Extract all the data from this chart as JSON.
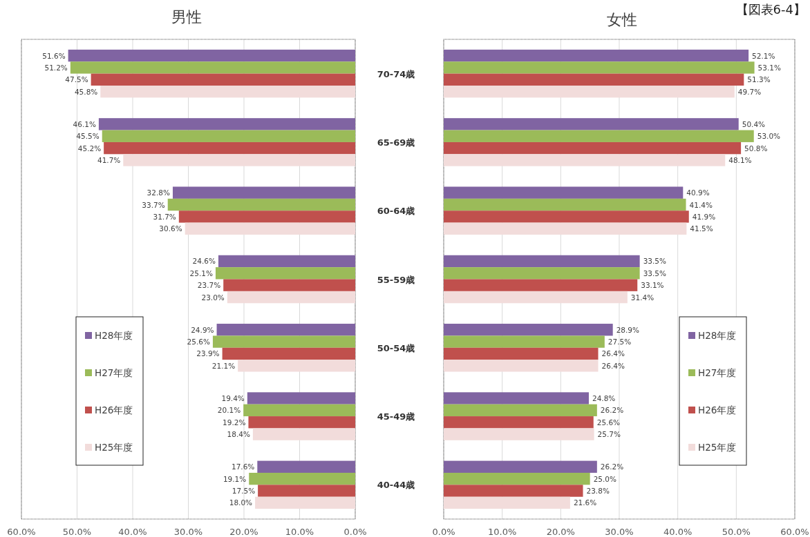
{
  "chart_data": [
    {
      "type": "bar",
      "orientation": "horizontal",
      "title": "男性",
      "annotations": [
        "【図表6-4】"
      ],
      "categories": [
        null,
        null,
        null,
        null,
        null,
        null,
        null
      ],
      "series": [
        {
          "name": "H28年度",
          "color": "#8064a2",
          "values": [
            51.6,
            46.1,
            32.8,
            24.6,
            24.9,
            19.4,
            17.6
          ],
          "value_labels": [
            "51.6%",
            "46.1%",
            "32.8%",
            "24.6%",
            "24.9%",
            "19.4%",
            "17.6%"
          ]
        },
        {
          "name": "H27年度",
          "color": "#9bbb59",
          "values": [
            51.2,
            45.5,
            33.7,
            25.1,
            25.6,
            20.1,
            19.1
          ],
          "value_labels": [
            "51.2%",
            "45.5%",
            "33.7%",
            "25.1%",
            "25.6%",
            "20.1%",
            "19.1%"
          ]
        },
        {
          "name": "H26年度",
          "color": "#c0504d",
          "values": [
            47.5,
            45.2,
            31.7,
            23.7,
            23.9,
            19.2,
            17.5
          ],
          "value_labels": [
            "47.5%",
            "45.2%",
            "31.7%",
            "23.7%",
            "23.9%",
            "19.2%",
            "17.5%"
          ]
        },
        {
          "name": "H25年度",
          "color": "#f2dcdb",
          "values": [
            45.8,
            41.7,
            30.6,
            23.0,
            21.1,
            18.4,
            18.0
          ],
          "value_labels": [
            "45.8%",
            "41.7%",
            "30.6%",
            "23.0%",
            "21.1%",
            "18.4%",
            "18.0%"
          ]
        }
      ],
      "xlim": [
        60,
        0
      ],
      "xticks": [
        {
          "value": 60,
          "label": "60.0%"
        },
        {
          "value": 50,
          "label": "50.0%"
        },
        {
          "value": 40,
          "label": "40.0%"
        },
        {
          "value": 30,
          "label": "30.0%"
        },
        {
          "value": 20,
          "label": "20.0%"
        },
        {
          "value": 10,
          "label": "10.0%"
        },
        {
          "value": 0,
          "label": "0.0%"
        }
      ],
      "grid": "x",
      "legend": "bottom left",
      "tick_labels": "x"
    },
    {
      "type": "bar",
      "orientation": "horizontal",
      "title": "女性",
      "categories": [
        "70-74歳",
        "65-69歳",
        "60-64歳",
        "55-59歳",
        "50-54歳",
        "45-49歳",
        "40-44歳"
      ],
      "series": [
        {
          "name": "H28年度",
          "color": "#8064a2",
          "values": [
            52.1,
            50.4,
            40.9,
            33.5,
            28.9,
            24.8,
            26.2
          ],
          "value_labels": [
            "52.1%",
            "50.4%",
            "40.9%",
            "33.5%",
            "28.9%",
            "24.8%",
            "26.2%"
          ]
        },
        {
          "name": "H27年度",
          "color": "#9bbb59",
          "values": [
            53.1,
            53.0,
            41.4,
            33.5,
            27.5,
            26.2,
            25.0
          ],
          "value_labels": [
            "53.1%",
            "53.0%",
            "41.4%",
            "33.5%",
            "27.5%",
            "26.2%",
            "25.0%"
          ]
        },
        {
          "name": "H26年度",
          "color": "#c0504d",
          "values": [
            51.3,
            50.8,
            41.9,
            33.1,
            26.4,
            25.6,
            23.8
          ],
          "value_labels": [
            "51.3%",
            "50.8%",
            "41.9%",
            "33.1%",
            "26.4%",
            "25.6%",
            "23.8%"
          ]
        },
        {
          "name": "H25年度",
          "color": "#f2dcdb",
          "values": [
            49.7,
            48.1,
            41.5,
            31.4,
            26.4,
            25.7,
            21.6
          ],
          "value_labels": [
            "49.7%",
            "48.1%",
            "41.5%",
            "31.4%",
            "26.4%",
            "25.7%",
            "21.6%"
          ]
        }
      ],
      "xlim": [
        0,
        60
      ],
      "xticks": [
        {
          "value": 0,
          "label": "0.0%"
        },
        {
          "value": 10,
          "label": "10.0%"
        },
        {
          "value": 20,
          "label": "20.0%"
        },
        {
          "value": 30,
          "label": "30.0%"
        },
        {
          "value": 40,
          "label": "40.0%"
        },
        {
          "value": 50,
          "label": "50.0%"
        },
        {
          "value": 60,
          "label": "60.0%"
        }
      ],
      "grid": "x",
      "legend": "bottom right"
    }
  ]
}
